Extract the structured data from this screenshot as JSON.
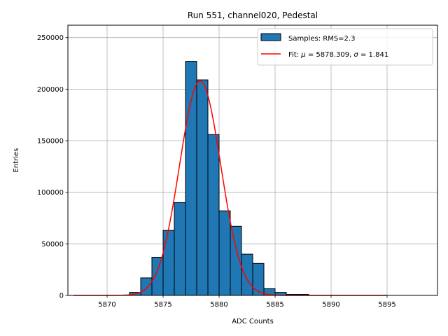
{
  "chart_data": {
    "type": "bar",
    "title": "Run 551, channel020, Pedestal",
    "xlabel": "ADC Counts",
    "ylabel": "Entries",
    "xlim": [
      5866.5,
      5899.5
    ],
    "ylim": [
      0,
      262000
    ],
    "xticks": [
      5870,
      5875,
      5880,
      5885,
      5890,
      5895
    ],
    "yticks": [
      0,
      50000,
      100000,
      150000,
      200000,
      250000
    ],
    "grid": true,
    "legend_position": "top-right",
    "bar_color": "#1f77b4",
    "bar_edge_color": "#000000",
    "fit_color": "#ff0000",
    "bins": {
      "edges": [
        5872,
        5873,
        5874,
        5875,
        5876,
        5877,
        5878,
        5879,
        5880,
        5881,
        5882,
        5883,
        5884,
        5885,
        5886,
        5887,
        5888
      ],
      "counts": [
        3000,
        17000,
        37000,
        63000,
        90000,
        227000,
        209000,
        156000,
        82000,
        67000,
        40000,
        31000,
        6500,
        3000,
        1000,
        1000
      ]
    },
    "fit": {
      "mu": 5878.309,
      "sigma": 1.841,
      "amplitude": 208000,
      "x_range": [
        5867,
        5895
      ]
    },
    "legend": {
      "samples_label": "Samples: RMS=2.3",
      "fit_prefix": "Fit: ",
      "mu_symbol": "μ",
      "mu_value": " = 5878.309, ",
      "sigma_symbol": "σ",
      "sigma_value": " = 1.841"
    }
  }
}
